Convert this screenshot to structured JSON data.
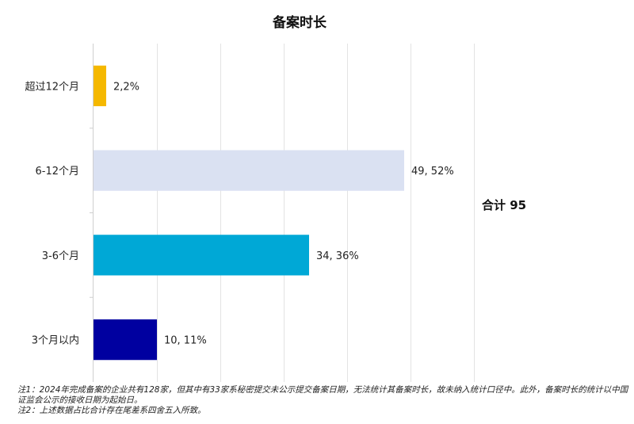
{
  "chart_data": {
    "type": "bar",
    "orientation": "horizontal",
    "title": "备案时长",
    "categories": [
      "超过12个月",
      "6-12个月",
      "3-6个月",
      "3个月以内"
    ],
    "values": [
      2,
      49,
      34,
      10
    ],
    "percent_labels": [
      "2%",
      "52%",
      "36%",
      "11%"
    ],
    "data_labels": [
      "2,2%",
      "49, 52%",
      "34, 36%",
      "10, 11%"
    ],
    "colors": [
      "#F5B800",
      "#DAE1F2",
      "#00A8D6",
      "#0000A0"
    ],
    "xlim": [
      0,
      60
    ],
    "grid": true,
    "legend": "none",
    "annotation": "合计 95"
  },
  "notes": [
    "注1：2024年完成备案的企业共有128家，但其中有33家系秘密提交未公示提交备案日期，无法统计其备案时长，故未纳入统计口径中。此外，备案时长的统计以中国证监会公示的接收日期为起始日。",
    "注2：上述数据占比合计存在尾差系四舍五入所致。"
  ]
}
